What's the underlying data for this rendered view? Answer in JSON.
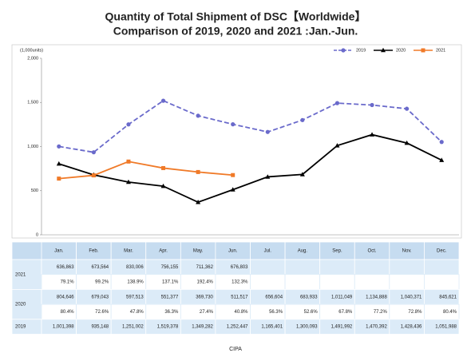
{
  "chart_data": {
    "type": "line",
    "title": [
      "Quantity of Total Shipment of DSC【Worldwide】",
      "Comparison of 2019, 2020 and 2021 :Jan.-Jun."
    ],
    "y_label": "(1,000units)",
    "categories": [
      "Jan.",
      "Feb.",
      "Mar.",
      "Apr.",
      "May.",
      "Jun.",
      "Jul.",
      "Aug.",
      "Sep.",
      "Oct.",
      "Nov.",
      "Dec."
    ],
    "series": [
      {
        "name": "2019",
        "color": "#6a6acb",
        "dash": true,
        "marker": "circle",
        "values": [
          1001.398,
          935.148,
          1251.002,
          1519.378,
          1349.282,
          1252.447,
          1165.401,
          1300.093,
          1491.992,
          1470.392,
          1428.436,
          1051.988
        ]
      },
      {
        "name": "2020",
        "color": "#000000",
        "dash": false,
        "marker": "triangle",
        "values": [
          804.646,
          679.043,
          597.513,
          551.377,
          369.73,
          511.517,
          656.604,
          683.933,
          1011.049,
          1134.888,
          1040.371,
          845.621
        ]
      },
      {
        "name": "2021",
        "color": "#f07a28",
        "dash": false,
        "marker": "square",
        "values": [
          636.863,
          673.564,
          830.006,
          756.155,
          711.362,
          676.803,
          null,
          null,
          null,
          null,
          null,
          null
        ]
      }
    ],
    "ylim": [
      0,
      2000
    ],
    "yticks": [
      0,
      500,
      {
        "value": 1000,
        "label": "1,000"
      },
      {
        "value": 1500,
        "label": "1,500"
      },
      {
        "value": 2000,
        "label": "2,000"
      }
    ],
    "grid": false,
    "legend": "top-right"
  },
  "table": {
    "rows": [
      {
        "label": "2021",
        "values": [
          "636,863",
          "673,564",
          "830,006",
          "756,155",
          "711,362",
          "676,803",
          "",
          "",
          "",
          "",
          "",
          ""
        ],
        "ratios": [
          "79.1%",
          "99.2%",
          "138.9%",
          "137.1%",
          "192.4%",
          "132.3%"
        ]
      },
      {
        "label": "2020",
        "values": [
          "804,646",
          "679,043",
          "597,513",
          "551,377",
          "369,730",
          "511,517",
          "656,604",
          "683,933",
          "1,011,049",
          "1,134,888",
          "1,040,371",
          "845,621"
        ],
        "ratios": [
          "80.4%",
          "72.6%",
          "47.8%",
          "36.3%",
          "27.4%",
          "40.8%",
          "56.3%",
          "52.6%",
          "67.8%",
          "77.2%",
          "72.8%",
          "80.4%"
        ]
      },
      {
        "label": "2019",
        "values": [
          "1,001,398",
          "935,148",
          "1,251,002",
          "1,519,378",
          "1,349,282",
          "1,252,447",
          "1,165,401",
          "1,300,093",
          "1,491,992",
          "1,470,392",
          "1,428,436",
          "1,051,988"
        ]
      }
    ]
  },
  "footer": "CIPA"
}
